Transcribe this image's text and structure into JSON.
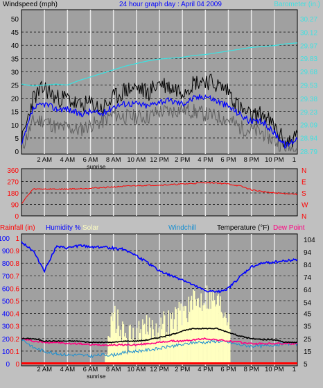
{
  "header": {
    "wind_title": "Windspeed (mph)",
    "date_title": "24 hour graph day : April 04 2009",
    "baro_title": "Barometer (in.)"
  },
  "colors": {
    "background": "#c0c0c0",
    "plot_bg": "#a0a0a0",
    "grid": "#000000",
    "wind_avg": "#0000ff",
    "wind_gust": "#000000",
    "wind_low": "#606060",
    "barometer": "#40e0e0",
    "direction": "#ff0000",
    "humidity": "#0000ff",
    "temperature": "#000000",
    "windchill": "#1a8fd0",
    "dewpoint": "#ff0080",
    "solar": "#ffffc0",
    "rain": "#ff0000",
    "label_blue": "#0000ff",
    "label_red": "#ff0000",
    "label_cyan": "#40e0e0"
  },
  "x_axis": {
    "hour_labels": [
      "2 AM",
      "4 AM",
      "6 AM",
      "8 AM",
      "10 AM",
      "12 PM",
      "2 PM",
      "4 PM",
      "6 PM",
      "8 PM",
      "10 PM",
      "1"
    ],
    "sunrise_label": "sunrise"
  },
  "chart_data": [
    {
      "type": "line",
      "name": "wind",
      "title": "Windspeed (mph)",
      "ylabel_left": "Windspeed (mph)",
      "ylabel_right": "Barometer (in.)",
      "ylim": [
        0,
        50
      ],
      "y_ticks": [
        0,
        5,
        10,
        15,
        20,
        25,
        30,
        35,
        40,
        45,
        50
      ],
      "y2lim": [
        28.79,
        30.27
      ],
      "y2_ticks": [
        "28.79",
        "28.94",
        "29.09",
        "29.23",
        "29.38",
        "29.53",
        "29.68",
        "29.83",
        "29.97",
        "30.12",
        "30.27"
      ],
      "x": [
        0,
        1,
        2,
        3,
        4,
        5,
        6,
        7,
        8,
        9,
        10,
        11,
        12,
        13,
        14,
        15,
        16,
        17,
        18,
        19,
        20,
        21,
        22,
        23,
        24
      ],
      "series": [
        {
          "name": "gust",
          "values": [
            3,
            20,
            24,
            20,
            20,
            17,
            18,
            16,
            20,
            23,
            24,
            22,
            26,
            24,
            23,
            26,
            27,
            25,
            23,
            16,
            13,
            14,
            9,
            3,
            6
          ]
        },
        {
          "name": "average",
          "values": [
            2,
            16,
            18,
            16,
            16,
            14,
            15,
            14,
            17,
            18,
            18,
            17,
            19,
            19,
            18,
            20,
            21,
            19,
            17,
            14,
            11,
            11,
            7,
            2,
            5
          ]
        },
        {
          "name": "low",
          "values": [
            1,
            11,
            12,
            9,
            9,
            8,
            10,
            11,
            14,
            13,
            13,
            13,
            15,
            15,
            16,
            15,
            14,
            13,
            12,
            9,
            8,
            7,
            4,
            1,
            2
          ]
        }
      ],
      "barometer": [
        29.54,
        29.52,
        29.53,
        29.54,
        29.53,
        29.58,
        29.62,
        29.66,
        29.7,
        29.74,
        29.77,
        29.8,
        29.82,
        29.83,
        29.84,
        29.86,
        29.87,
        29.89,
        29.91,
        29.93,
        29.95,
        29.96,
        29.97,
        29.99,
        30.0
      ]
    },
    {
      "type": "line",
      "name": "direction",
      "ylim": [
        0,
        360
      ],
      "y_ticks": [
        0,
        90,
        180,
        270,
        360
      ],
      "compass_labels": [
        "N",
        "W",
        "S",
        "E",
        "N"
      ],
      "x": [
        0,
        1,
        2,
        3,
        4,
        5,
        6,
        7,
        8,
        9,
        10,
        11,
        12,
        13,
        14,
        15,
        16,
        17,
        18,
        19,
        20,
        21,
        22,
        23,
        24
      ],
      "values": [
        97,
        210,
        212,
        210,
        211,
        213,
        218,
        222,
        228,
        232,
        238,
        240,
        242,
        245,
        250,
        255,
        262,
        258,
        250,
        235,
        205,
        190,
        180,
        175,
        170
      ]
    },
    {
      "type": "line",
      "name": "humidity-temp-solar",
      "labels": {
        "rain": "Rainfall (in)",
        "humidity": "Humidity %",
        "solar": "Solar",
        "windchill": "Windchill",
        "temperature": "Temperature (°F)",
        "dewpoint": "Dew Point"
      },
      "ylim": [
        0,
        100
      ],
      "y_ticks_humidity": [
        0,
        10,
        20,
        30,
        40,
        50,
        60,
        70,
        80,
        90,
        100
      ],
      "y_ticks_rain": [
        "0",
        "0.1",
        "0.2",
        "0.3",
        "0.4",
        "0.5",
        "0.6",
        "0.7",
        "0.8",
        "0.9",
        "1"
      ],
      "y2lim": [
        5,
        105
      ],
      "y2_ticks": [
        "5",
        "15",
        "25",
        "35",
        "45",
        "54",
        "64",
        "74",
        "84",
        "94",
        "104"
      ],
      "x": [
        0,
        1,
        2,
        3,
        4,
        5,
        6,
        7,
        8,
        9,
        10,
        11,
        12,
        13,
        14,
        15,
        16,
        17,
        18,
        19,
        20,
        21,
        22,
        23,
        24
      ],
      "humidity": [
        97,
        90,
        74,
        93,
        92,
        94,
        93,
        93,
        92,
        91,
        86,
        80,
        74,
        70,
        67,
        62,
        58,
        57,
        60,
        69,
        77,
        80,
        81,
        82,
        83
      ],
      "temperature": [
        25,
        25,
        23,
        23,
        23,
        23,
        22,
        22,
        22,
        23,
        23,
        24,
        26,
        28,
        31,
        33,
        33,
        33,
        30,
        27,
        25,
        24,
        24,
        22,
        22
      ],
      "windchill": [
        25,
        18,
        15,
        13,
        12,
        12,
        11,
        12,
        12,
        14,
        15,
        16,
        17,
        19,
        20,
        22,
        22,
        23,
        22,
        20,
        19,
        19,
        20,
        21,
        21
      ],
      "dewpoint": [
        25,
        23,
        22,
        22,
        21,
        21,
        20,
        20,
        20,
        20,
        20,
        21,
        22,
        23,
        23,
        24,
        25,
        24,
        23,
        22,
        21,
        21,
        21,
        21,
        21
      ],
      "solar": [
        0,
        0,
        0,
        0,
        0,
        0,
        0,
        5,
        38,
        18,
        22,
        28,
        30,
        34,
        42,
        48,
        55,
        50,
        40,
        0,
        0,
        0,
        0,
        0,
        0
      ],
      "rain": [
        0,
        0,
        0,
        0,
        0,
        0,
        0,
        0,
        0,
        0,
        0,
        0,
        0,
        0,
        0,
        0,
        0,
        0,
        0,
        0,
        0,
        0,
        0,
        0,
        0
      ]
    }
  ]
}
